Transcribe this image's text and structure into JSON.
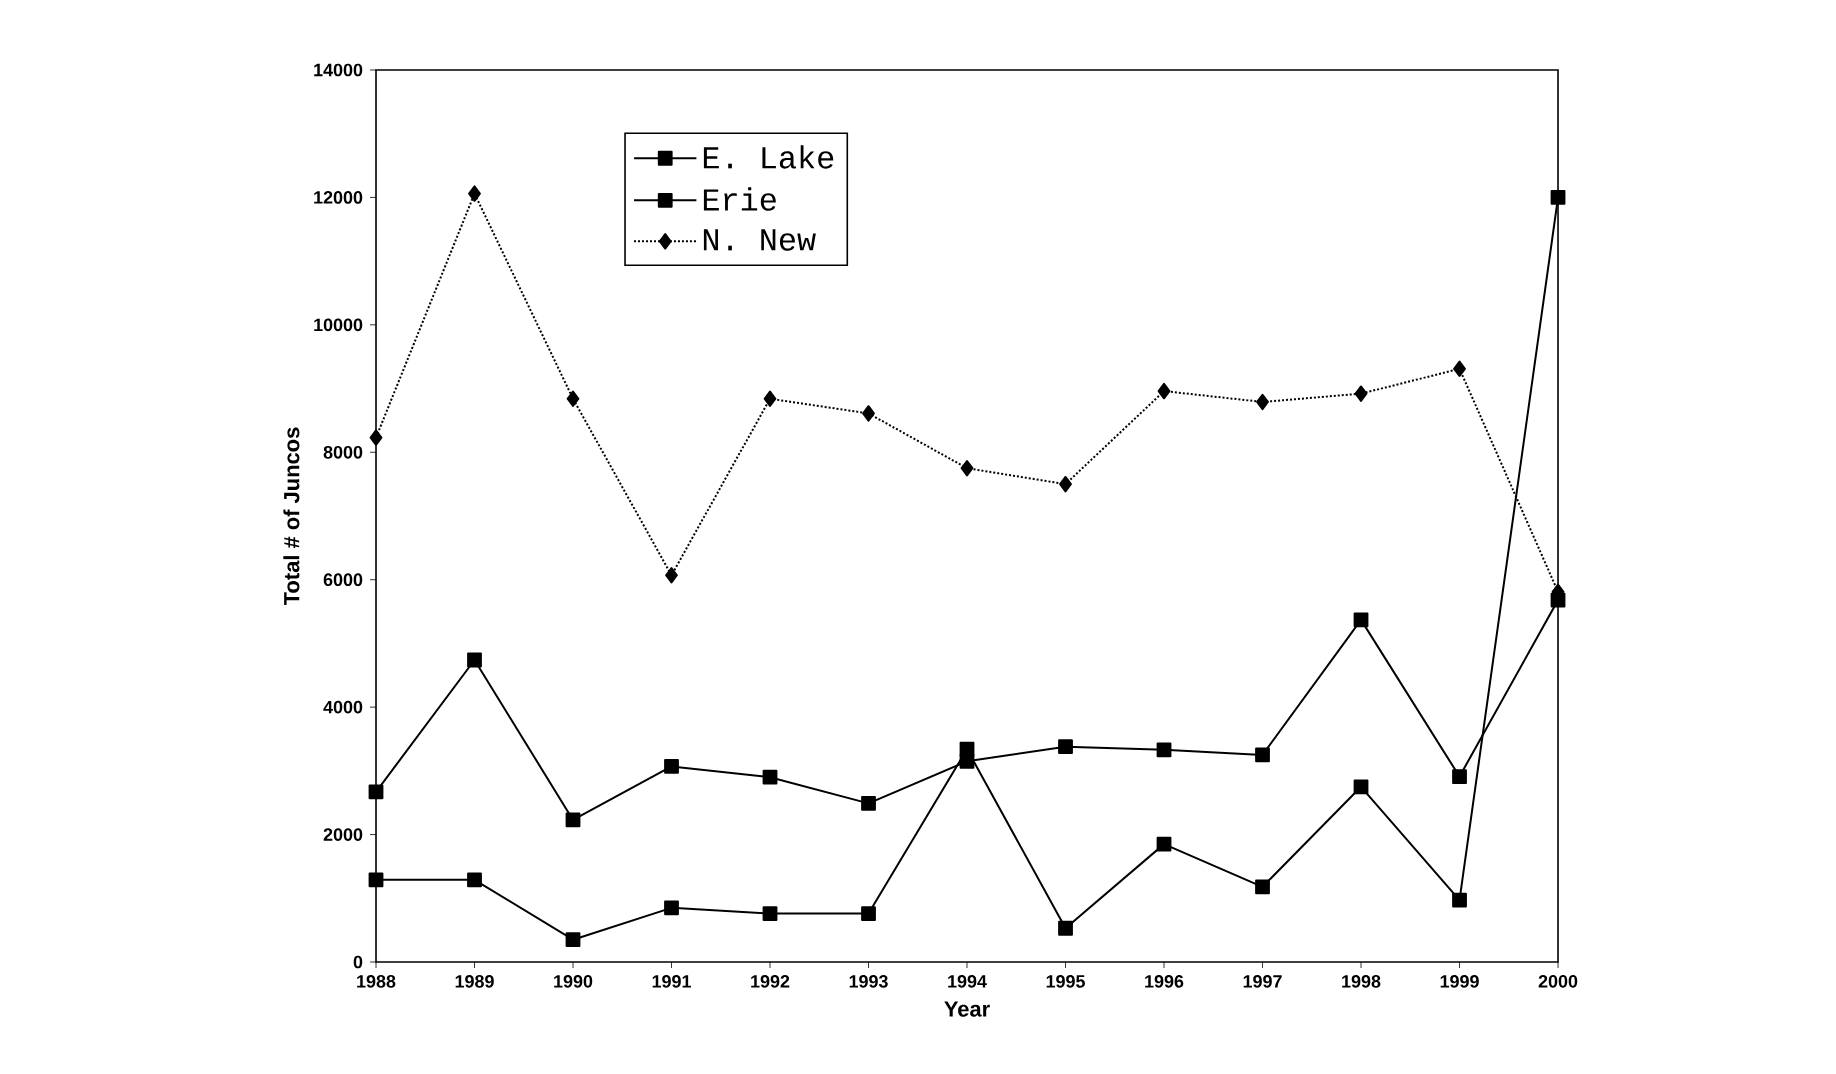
{
  "chart_data": {
    "type": "line",
    "xlabel": "Year",
    "ylabel": "Total # of Juncos",
    "x": [
      1988,
      1989,
      1990,
      1991,
      1992,
      1993,
      1994,
      1995,
      1996,
      1997,
      1998,
      1999,
      2000
    ],
    "series": [
      {
        "name": "E. Lake",
        "color": "#000000",
        "marker": "square",
        "line_style": "solid",
        "values": [
          2670,
          4740,
          2230,
          3070,
          2900,
          2490,
          3150,
          3380,
          3330,
          3250,
          5370,
          2910,
          5680
        ]
      },
      {
        "name": "Erie",
        "color": "#000000",
        "marker": "square",
        "line_style": "solid",
        "values": [
          1290,
          1290,
          350,
          850,
          760,
          760,
          3340,
          530,
          1850,
          1180,
          2750,
          970,
          12000
        ]
      },
      {
        "name": "N. New",
        "color": "#000000",
        "marker": "diamond",
        "line_style": "dotted",
        "values": [
          8230,
          12060,
          8840,
          6070,
          8840,
          8610,
          7750,
          7500,
          8960,
          8790,
          8920,
          9310,
          5810
        ]
      }
    ],
    "xlim": [
      1988,
      2000
    ],
    "xticks": [
      1988,
      1989,
      1990,
      1991,
      1992,
      1993,
      1994,
      1995,
      1996,
      1997,
      1998,
      1999,
      2000
    ],
    "ylim": [
      0,
      14000
    ],
    "yticks": [
      0,
      2000,
      4000,
      6000,
      8000,
      10000,
      12000,
      14000
    ],
    "grid": false,
    "legend": "top left"
  }
}
